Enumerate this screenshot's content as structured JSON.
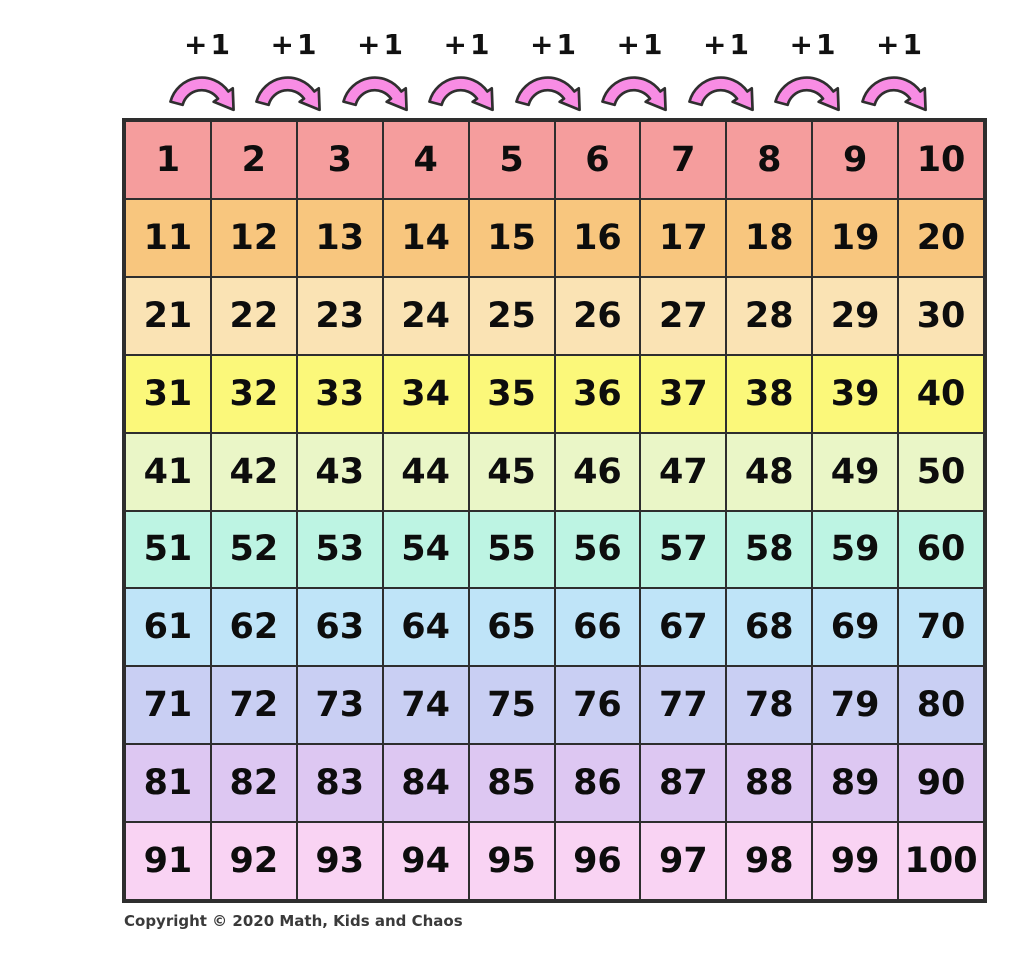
{
  "page": {
    "background_color": "#ffffff",
    "description": "Hundred chart 1-100 with +1 jump arrows"
  },
  "header": {
    "jump_label": "+1",
    "jump_count": 9,
    "arrow_fill_color": "#f88ce4",
    "arrow_outline_color": "#2f2f2f"
  },
  "chart_data": {
    "type": "table",
    "title": "Hundred chart (1 to 100) showing +1 jumps",
    "rows": 10,
    "cols": 10,
    "row_colors": [
      "#f59d9d",
      "#f8c67e",
      "#fae3b4",
      "#fbf87a",
      "#eaf6c7",
      "#bdf4e3",
      "#bfe4f8",
      "#c9cff3",
      "#ddc7f2",
      "#f9d3f3"
    ],
    "grid_line_color": "#2e2e2e",
    "number_color": "#0d0d0d",
    "cells": [
      [
        1,
        2,
        3,
        4,
        5,
        6,
        7,
        8,
        9,
        10
      ],
      [
        11,
        12,
        13,
        14,
        15,
        16,
        17,
        18,
        19,
        20
      ],
      [
        21,
        22,
        23,
        24,
        25,
        26,
        27,
        28,
        29,
        30
      ],
      [
        31,
        32,
        33,
        34,
        35,
        36,
        37,
        38,
        39,
        40
      ],
      [
        41,
        42,
        43,
        44,
        45,
        46,
        47,
        48,
        49,
        50
      ],
      [
        51,
        52,
        53,
        54,
        55,
        56,
        57,
        58,
        59,
        60
      ],
      [
        61,
        62,
        63,
        64,
        65,
        66,
        67,
        68,
        69,
        70
      ],
      [
        71,
        72,
        73,
        74,
        75,
        76,
        77,
        78,
        79,
        80
      ],
      [
        81,
        82,
        83,
        84,
        85,
        86,
        87,
        88,
        89,
        90
      ],
      [
        91,
        92,
        93,
        94,
        95,
        96,
        97,
        98,
        99,
        100
      ]
    ]
  },
  "footer": {
    "copyright": "Copyright © 2020 Math, Kids and Chaos"
  }
}
